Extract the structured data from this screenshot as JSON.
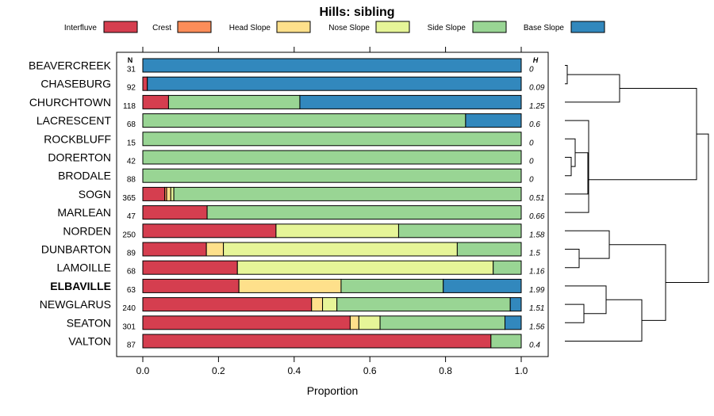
{
  "chart_data": {
    "type": "bar",
    "orientation": "horizontal",
    "stacked": true,
    "title": "Hills: sibling",
    "xlabel": "Proportion",
    "ylabel": "",
    "xlim": [
      0,
      1
    ],
    "x_ticks": [
      "0.0",
      "0.2",
      "0.4",
      "0.6",
      "0.8",
      "1.0"
    ],
    "x_tick_values": [
      0,
      0.2,
      0.4,
      0.6,
      0.8,
      1.0
    ],
    "n_header": "N",
    "h_header": "H",
    "highlight": "ELBAVILLE",
    "legend_position": "top",
    "legend": [
      {
        "name": "Interfluve",
        "color": "#D53E4F"
      },
      {
        "name": "Crest",
        "color": "#FC8D59"
      },
      {
        "name": "Head Slope",
        "color": "#FEE08B"
      },
      {
        "name": "Nose Slope",
        "color": "#E6F598"
      },
      {
        "name": "Side Slope",
        "color": "#99D594"
      },
      {
        "name": "Base Slope",
        "color": "#3288BD"
      }
    ],
    "rows": [
      {
        "label": "BEAVERCREEK",
        "n": "31",
        "h": "0",
        "values": [
          0,
          0,
          0,
          0,
          0,
          1.0
        ]
      },
      {
        "label": "CHASEBURG",
        "n": "92",
        "h": "0.09",
        "values": [
          0.012,
          0,
          0,
          0,
          0,
          0.988
        ]
      },
      {
        "label": "CHURCHTOWN",
        "n": "118",
        "h": "1.25",
        "values": [
          0.068,
          0,
          0,
          0,
          0.347,
          0.585
        ]
      },
      {
        "label": "LACRESCENT",
        "n": "68",
        "h": "0.6",
        "values": [
          0,
          0,
          0,
          0,
          0.853,
          0.147
        ]
      },
      {
        "label": "ROCKBLUFF",
        "n": "15",
        "h": "0",
        "values": [
          0,
          0,
          0,
          0,
          1.0,
          0
        ]
      },
      {
        "label": "DORERTON",
        "n": "42",
        "h": "0",
        "values": [
          0,
          0,
          0,
          0,
          1.0,
          0
        ]
      },
      {
        "label": "BRODALE",
        "n": "88",
        "h": "0",
        "values": [
          0,
          0,
          0,
          0,
          1.0,
          0
        ]
      },
      {
        "label": "SOGN",
        "n": "365",
        "h": "0.51",
        "values": [
          0.058,
          0.005,
          0.011,
          0.008,
          0.918,
          0
        ]
      },
      {
        "label": "MARLEAN",
        "n": "47",
        "h": "0.66",
        "values": [
          0.17,
          0,
          0,
          0,
          0.83,
          0
        ]
      },
      {
        "label": "NORDEN",
        "n": "250",
        "h": "1.58",
        "values": [
          0.352,
          0,
          0,
          0.324,
          0.324,
          0
        ]
      },
      {
        "label": "DUNBARTON",
        "n": "89",
        "h": "1.5",
        "values": [
          0.168,
          0,
          0.045,
          0.618,
          0.169,
          0
        ]
      },
      {
        "label": "LAMOILLE",
        "n": "68",
        "h": "1.16",
        "values": [
          0.25,
          0,
          0,
          0.676,
          0.074,
          0
        ]
      },
      {
        "label": "ELBAVILLE",
        "n": "63",
        "h": "1.99",
        "values": [
          0.254,
          0,
          0.27,
          0,
          0.27,
          0.206
        ]
      },
      {
        "label": "NEWGLARUS",
        "n": "240",
        "h": "1.51",
        "values": [
          0.446,
          0,
          0.029,
          0.038,
          0.458,
          0.029
        ]
      },
      {
        "label": "SEATON",
        "n": "301",
        "h": "1.56",
        "values": [
          0.548,
          0,
          0.023,
          0.056,
          0.33,
          0.043
        ]
      },
      {
        "label": "VALTON",
        "n": "87",
        "h": "0.4",
        "values": [
          0.92,
          0,
          0,
          0,
          0.08,
          0
        ]
      }
    ]
  }
}
